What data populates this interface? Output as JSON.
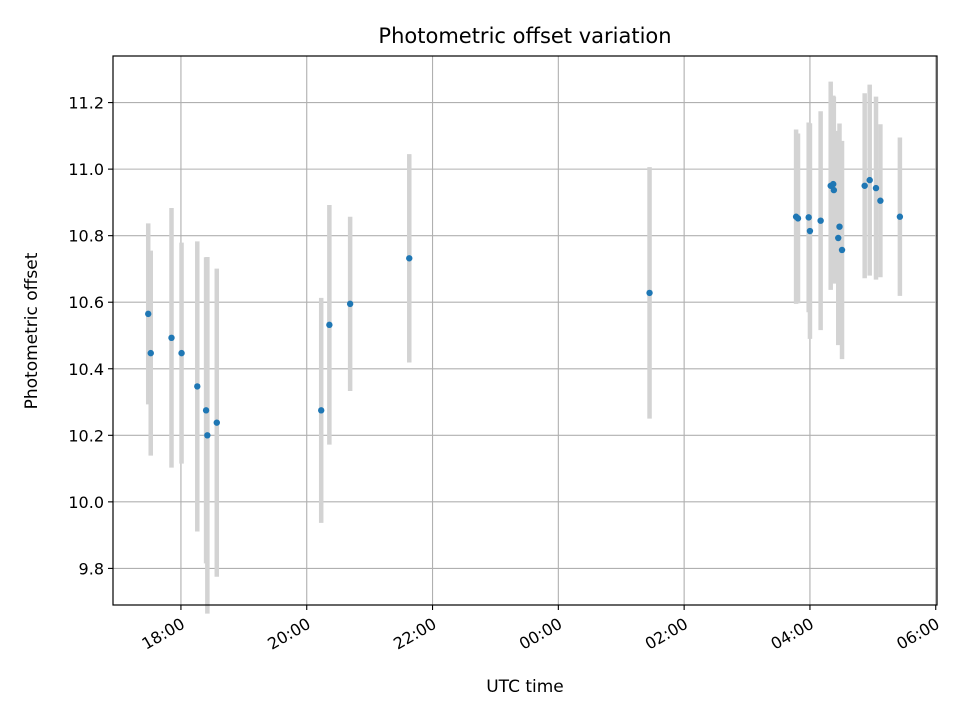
{
  "chart_data": {
    "type": "scatter",
    "title": "Photometric offset variation",
    "xlabel": "UTC time",
    "ylabel": "Photometric offset",
    "x_unit": "hours",
    "x_tick_labels": [
      "18:00",
      "20:00",
      "22:00",
      "00:00",
      "02:00",
      "04:00",
      "06:00"
    ],
    "xlim": [
      16.92,
      30.02
    ],
    "ylim": [
      9.69,
      11.34
    ],
    "y_ticks": [
      9.8,
      10.0,
      10.2,
      10.4,
      10.6,
      10.8,
      11.0,
      11.2
    ],
    "grid": true,
    "colors": {
      "point": "#1f77b4",
      "errorbar": "#d3d3d3",
      "grid": "#b0b0b0"
    },
    "series": [
      {
        "points": [
          {
            "time": "17:29",
            "x": 17.48,
            "y": 10.565,
            "err": 0.272
          },
          {
            "time": "17:31",
            "x": 17.52,
            "y": 10.447,
            "err": 0.308
          },
          {
            "time": "17:51",
            "x": 17.85,
            "y": 10.493,
            "err": 0.39
          },
          {
            "time": "18:01",
            "x": 18.01,
            "y": 10.447,
            "err": 0.332
          },
          {
            "time": "18:16",
            "x": 18.26,
            "y": 10.347,
            "err": 0.436
          },
          {
            "time": "18:24",
            "x": 18.4,
            "y": 10.275,
            "err": 0.46
          },
          {
            "time": "18:25",
            "x": 18.42,
            "y": 10.2,
            "err": 0.536
          },
          {
            "time": "18:34",
            "x": 18.57,
            "y": 10.238,
            "err": 0.463
          },
          {
            "time": "20:14",
            "x": 20.23,
            "y": 10.275,
            "err": 0.338
          },
          {
            "time": "20:22",
            "x": 20.36,
            "y": 10.532,
            "err": 0.36
          },
          {
            "time": "20:41",
            "x": 20.69,
            "y": 10.595,
            "err": 0.262
          },
          {
            "time": "21:38",
            "x": 21.63,
            "y": 10.732,
            "err": 0.313
          },
          {
            "time": "01:27",
            "x": 25.45,
            "y": 10.628,
            "err": 0.378
          },
          {
            "time": "03:47",
            "x": 27.78,
            "y": 10.857,
            "err": 0.262
          },
          {
            "time": "03:49",
            "x": 27.81,
            "y": 10.852,
            "err": 0.255
          },
          {
            "time": "03:59",
            "x": 27.98,
            "y": 10.855,
            "err": 0.285
          },
          {
            "time": "04:00",
            "x": 28.0,
            "y": 10.814,
            "err": 0.324
          },
          {
            "time": "04:10",
            "x": 28.17,
            "y": 10.845,
            "err": 0.329
          },
          {
            "time": "04:20",
            "x": 28.33,
            "y": 10.95,
            "err": 0.313
          },
          {
            "time": "04:22",
            "x": 28.37,
            "y": 10.955,
            "err": 0.266
          },
          {
            "time": "04:23",
            "x": 28.38,
            "y": 10.937,
            "err": 0.281
          },
          {
            "time": "04:27",
            "x": 28.45,
            "y": 10.793,
            "err": 0.322
          },
          {
            "time": "04:28",
            "x": 28.47,
            "y": 10.827,
            "err": 0.31
          },
          {
            "time": "04:31",
            "x": 28.51,
            "y": 10.757,
            "err": 0.328
          },
          {
            "time": "04:52",
            "x": 28.87,
            "y": 10.95,
            "err": 0.278
          },
          {
            "time": "04:57",
            "x": 28.95,
            "y": 10.967,
            "err": 0.287
          },
          {
            "time": "05:03",
            "x": 29.05,
            "y": 10.943,
            "err": 0.275
          },
          {
            "time": "05:07",
            "x": 29.12,
            "y": 10.905,
            "err": 0.23
          },
          {
            "time": "05:26",
            "x": 29.43,
            "y": 10.857,
            "err": 0.238
          }
        ]
      }
    ]
  }
}
